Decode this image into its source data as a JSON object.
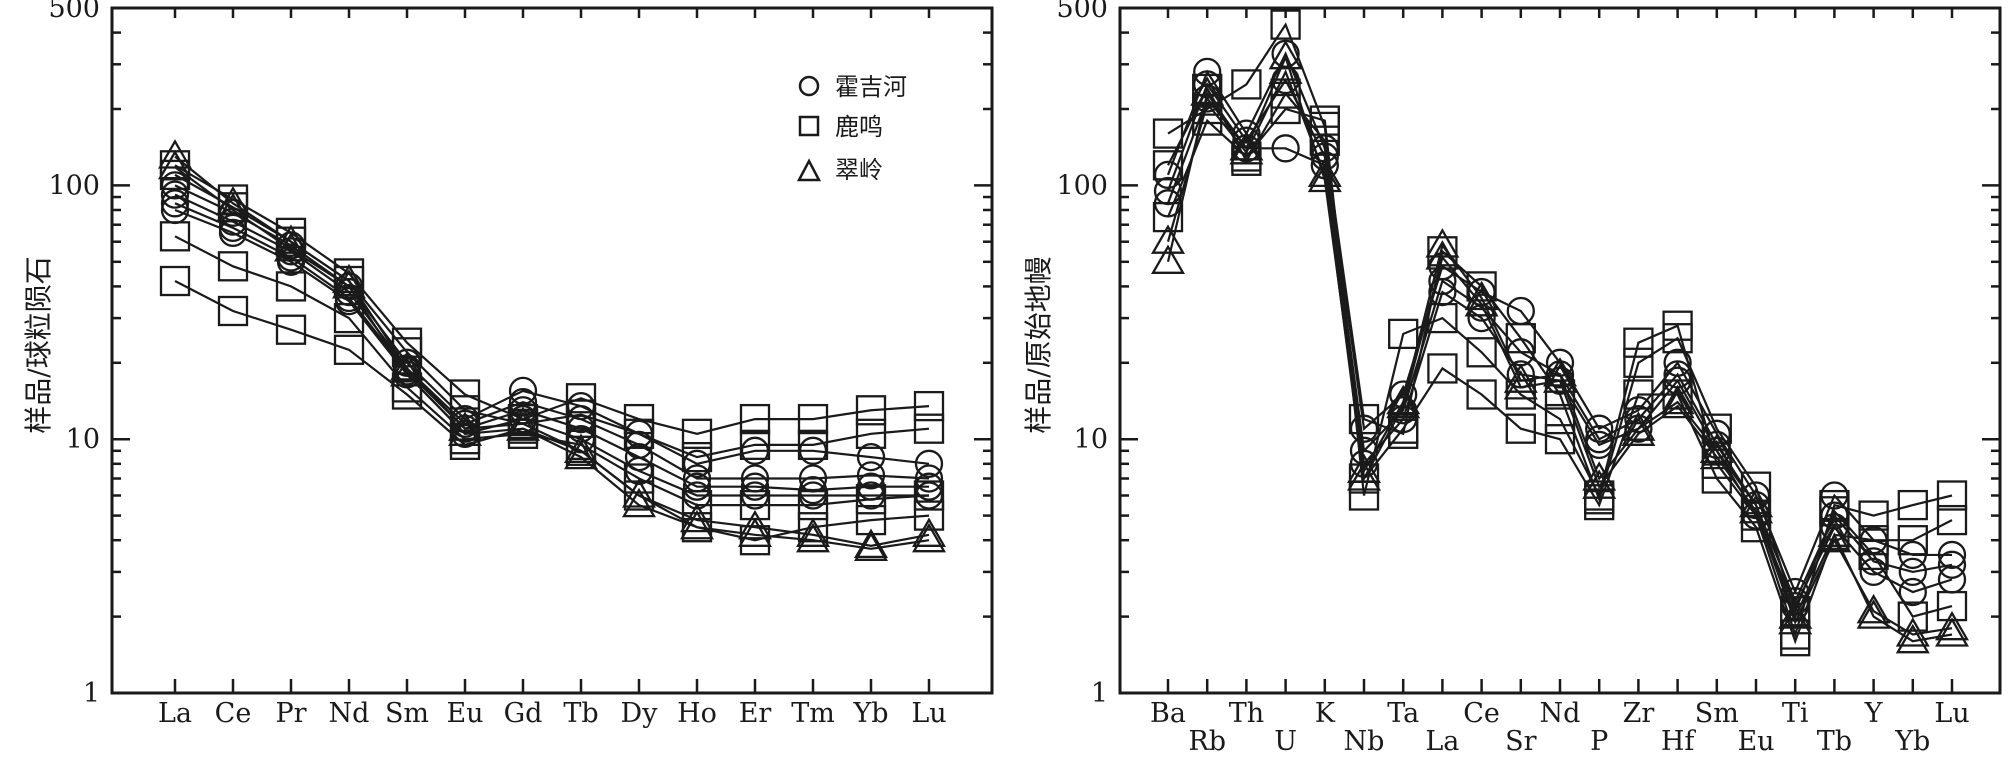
{
  "chart_data": [
    {
      "type": "line",
      "name": "ree-chondrite-normalized",
      "yscale": "log",
      "ylim": [
        1,
        500
      ],
      "ylabel": "样品/球粒陨石",
      "yticks": [
        1,
        10,
        100,
        500
      ],
      "categories": [
        "La",
        "Ce",
        "Pr",
        "Nd",
        "Sm",
        "Eu",
        "Gd",
        "Tb",
        "Dy",
        "Ho",
        "Er",
        "Tm",
        "Yb",
        "Lu"
      ],
      "legend": [
        {
          "marker": "circle",
          "label": "霍吉河"
        },
        {
          "marker": "square",
          "label": "鹿鸣"
        },
        {
          "marker": "triangle",
          "label": "翠岭"
        }
      ],
      "legend_position": "top-right",
      "series": [
        {
          "group": "霍吉河",
          "marker": "circle",
          "values": [
            100,
            78,
            58,
            40,
            20,
            12,
            15.5,
            13.5,
            10.5,
            8,
            9,
            9,
            8.5,
            8
          ]
        },
        {
          "group": "霍吉河",
          "marker": "circle",
          "values": [
            92,
            72,
            55,
            38,
            19,
            11.5,
            14,
            12,
            9.5,
            7,
            7,
            7,
            7.2,
            7
          ]
        },
        {
          "group": "霍吉河",
          "marker": "circle",
          "values": [
            85,
            68,
            52,
            36,
            18.5,
            11,
            13,
            11,
            8.5,
            6.5,
            6.5,
            6.3,
            6.5,
            6.5
          ]
        },
        {
          "group": "霍吉河",
          "marker": "circle",
          "values": [
            80,
            65,
            50,
            35,
            18,
            10.5,
            12,
            10,
            7.5,
            6,
            6,
            6,
            6,
            6
          ]
        },
        {
          "group": "鹿鸣",
          "marker": "square",
          "values": [
            120,
            88,
            65,
            45,
            24,
            15,
            12,
            14.5,
            12,
            10.5,
            12,
            12,
            13,
            13.5
          ]
        },
        {
          "group": "鹿鸣",
          "marker": "square",
          "values": [
            110,
            82,
            60,
            42,
            22,
            13,
            11.5,
            12.5,
            10.5,
            8.5,
            9.5,
            9.5,
            10.5,
            11
          ]
        },
        {
          "group": "鹿鸣",
          "marker": "square",
          "values": [
            63,
            48,
            40,
            30,
            16,
            10,
            10.5,
            9.5,
            7,
            5.5,
            5.5,
            5.5,
            5.8,
            6
          ]
        },
        {
          "group": "鹿鸣",
          "marker": "square",
          "values": [
            42,
            32,
            27,
            22.5,
            15,
            9.5,
            11,
            9,
            6,
            4.5,
            4,
            4.5,
            4.8,
            5
          ]
        },
        {
          "group": "翠岭",
          "marker": "triangle",
          "values": [
            130,
            85,
            60,
            42,
            19,
            11,
            11.5,
            9,
            6,
            4.8,
            4.5,
            4.2,
            3.8,
            4.2
          ]
        },
        {
          "group": "翠岭",
          "marker": "triangle",
          "values": [
            118,
            80,
            56,
            40,
            18,
            10.5,
            11,
            8.5,
            5.5,
            4.5,
            4.2,
            4,
            3.7,
            4
          ]
        }
      ]
    },
    {
      "type": "line",
      "name": "spider-primitive-mantle-normalized",
      "yscale": "log",
      "ylim": [
        1,
        500
      ],
      "ylabel": "样品/原始地幔",
      "yticks": [
        1,
        10,
        100,
        500
      ],
      "categories": [
        "Ba",
        "Rb",
        "Th",
        "U",
        "K",
        "Nb",
        "Ta",
        "La",
        "Ce",
        "Sr",
        "Nd",
        "P",
        "Zr",
        "Hf",
        "Sm",
        "Eu",
        "Ti",
        "Tb",
        "Y",
        "Yb",
        "Lu"
      ],
      "category_rows": [
        "upper",
        "lower",
        "upper",
        "lower",
        "upper",
        "lower",
        "upper",
        "lower",
        "upper",
        "lower",
        "upper",
        "lower",
        "upper",
        "lower",
        "upper",
        "lower",
        "upper",
        "lower",
        "upper",
        "lower",
        "upper"
      ],
      "series": [
        {
          "group": "霍吉河",
          "marker": "circle",
          "values": [
            110,
            280,
            160,
            330,
            140,
            11,
            15,
            48,
            38,
            32,
            20,
            11,
            13,
            20,
            10.5,
            6,
            2.5,
            6,
            4,
            3.5,
            3.5
          ]
        },
        {
          "group": "霍吉河",
          "marker": "circle",
          "values": [
            95,
            250,
            150,
            260,
            130,
            9,
            13,
            42,
            33,
            22,
            18,
            10,
            12,
            18,
            9.5,
            5.5,
            2.3,
            5,
            3.3,
            3,
            3.2
          ]
        },
        {
          "group": "霍吉河",
          "marker": "circle",
          "values": [
            85,
            220,
            140,
            140,
            120,
            8,
            12,
            38,
            30,
            18,
            17,
            9.5,
            11,
            17,
            9,
            5,
            2.2,
            4.5,
            3,
            2.5,
            2.8
          ]
        },
        {
          "group": "鹿鸣",
          "marker": "square",
          "values": [
            160,
            200,
            250,
            430,
            170,
            6,
            26,
            30,
            22,
            15,
            12,
            6,
            24,
            28,
            8,
            5,
            1.7,
            5.5,
            5,
            5.5,
            6
          ]
        },
        {
          "group": "鹿鸣",
          "marker": "square",
          "values": [
            75,
            180,
            130,
            200,
            180,
            7,
            11,
            19,
            15,
            11,
            10,
            5.5,
            15,
            15,
            7,
            4.5,
            1.6,
            4.2,
            4,
            4,
            4.8
          ]
        },
        {
          "group": "鹿鸣",
          "marker": "square",
          "values": [
            120,
            240,
            125,
            230,
            150,
            12,
            10.5,
            55,
            40,
            25,
            15,
            5.8,
            20,
            25,
            11,
            6.5,
            2.1,
            5.2,
            3.5,
            2,
            2.2
          ]
        },
        {
          "group": "翠岭",
          "marker": "triangle",
          "values": [
            50,
            230,
            140,
            320,
            105,
            7.5,
            14,
            58,
            36,
            17,
            18,
            7,
            11,
            14,
            9,
            5.5,
            2,
            4.2,
            2,
            1.6,
            1.7
          ]
        },
        {
          "group": "翠岭",
          "marker": "triangle",
          "values": [
            60,
            210,
            135,
            280,
            110,
            7,
            13.5,
            52,
            34,
            16,
            17,
            6.5,
            10.5,
            13.5,
            8.5,
            5.2,
            1.9,
            4,
            2.1,
            1.7,
            1.8
          ]
        }
      ]
    }
  ]
}
